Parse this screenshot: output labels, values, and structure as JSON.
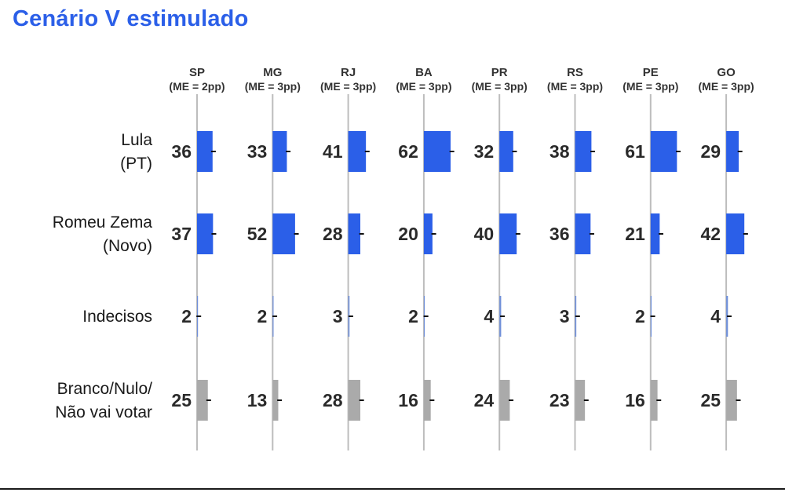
{
  "colors": {
    "title": "#2b5fe8",
    "candidate_bar": "#2b5fe8",
    "undecided_bar": "#6f8fd9",
    "blank_bar": "#aaaaaa",
    "axis_line": "#bdbdbd",
    "margin_tick": "#111111",
    "label_text": "#2a2a2a"
  },
  "chart_data": {
    "type": "bar",
    "title": "Cenário V estimulado",
    "states": [
      {
        "code": "SP",
        "margin_label": "(ME = 2pp)",
        "margin": 2
      },
      {
        "code": "MG",
        "margin_label": "(ME = 3pp)",
        "margin": 3
      },
      {
        "code": "RJ",
        "margin_label": "(ME = 3pp)",
        "margin": 3
      },
      {
        "code": "BA",
        "margin_label": "(ME = 3pp)",
        "margin": 3
      },
      {
        "code": "PR",
        "margin_label": "(ME = 3pp)",
        "margin": 3
      },
      {
        "code": "RS",
        "margin_label": "(ME = 3pp)",
        "margin": 3
      },
      {
        "code": "PE",
        "margin_label": "(ME = 3pp)",
        "margin": 3
      },
      {
        "code": "GO",
        "margin_label": "(ME = 3pp)",
        "margin": 3
      }
    ],
    "series": [
      {
        "name_lines": [
          "Lula",
          "(PT)"
        ],
        "color_key": "candidate_bar",
        "values": [
          36,
          33,
          41,
          62,
          32,
          38,
          61,
          29
        ]
      },
      {
        "name_lines": [
          "Romeu Zema",
          "(Novo)"
        ],
        "color_key": "candidate_bar",
        "values": [
          37,
          52,
          28,
          20,
          40,
          36,
          21,
          42
        ]
      },
      {
        "name_lines": [
          "Indecisos"
        ],
        "color_key": "undecided_bar",
        "values": [
          2,
          2,
          3,
          2,
          4,
          3,
          2,
          4
        ]
      },
      {
        "name_lines": [
          "Branco/Nulo/",
          "Não vai votar"
        ],
        "color_key": "blank_bar",
        "values": [
          25,
          13,
          28,
          16,
          24,
          23,
          16,
          25
        ]
      }
    ],
    "value_unit": "%",
    "grid": false,
    "legend": "none"
  }
}
